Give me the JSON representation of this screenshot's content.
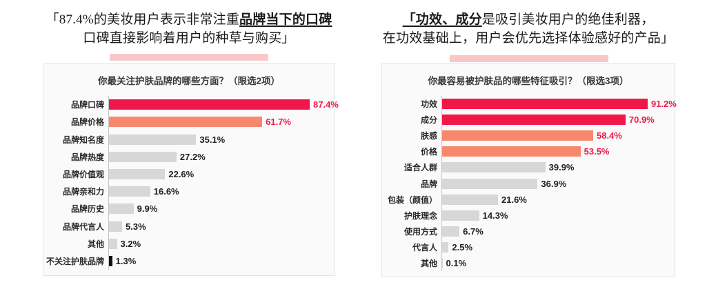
{
  "page": {
    "background": "#ffffff"
  },
  "palette": {
    "red": "#f0184a",
    "salmon": "#f8886d",
    "gray": "#d7d7d7",
    "black": "#111111",
    "value_red": "#ed1a4b",
    "value_dark": "#1f1f1f",
    "pink_strip": "#f9c7c7"
  },
  "panels": [
    {
      "headline": {
        "line1_prefix": "「87.4%的美妆用户表示非常注重",
        "line1_highlight": "品牌当下的口碑",
        "line1_suffix": "",
        "line2": "口碑直接影响着用户的种草与购买」"
      },
      "question": "你最关注护肤品牌的哪些方面？（限选2项）"
    },
    {
      "headline": {
        "line1_prefix": "",
        "line1_highlight": "「功效、成分",
        "line1_suffix": "是吸引美妆用户的绝佳利器，",
        "line2": "在功效基础上，用户会优先选择体验感好的产品」"
      },
      "question": "你最容易被护肤品的哪些特征吸引？（限选3项）"
    }
  ],
  "chart_data": [
    {
      "type": "bar",
      "orientation": "horizontal",
      "title": "你最关注护肤品牌的哪些方面？（限选2项）",
      "categories": [
        "品牌口碑",
        "品牌价格",
        "品牌知名度",
        "品牌热度",
        "品牌价值观",
        "品牌亲和力",
        "品牌历史",
        "品牌代言人",
        "其他",
        "不关注护肤品牌"
      ],
      "values": [
        87.4,
        61.7,
        35.1,
        27.2,
        22.6,
        16.6,
        9.9,
        5.3,
        3.2,
        1.3
      ],
      "value_suffix": "%",
      "xlim": [
        0,
        100
      ],
      "grid": false,
      "legend": false,
      "bar_color_keys": [
        "red",
        "salmon",
        "gray",
        "gray",
        "gray",
        "gray",
        "gray",
        "gray",
        "gray",
        "black"
      ],
      "value_color_keys": [
        "value_red",
        "value_red",
        "value_dark",
        "value_dark",
        "value_dark",
        "value_dark",
        "value_dark",
        "value_dark",
        "value_dark",
        "value_dark"
      ]
    },
    {
      "type": "bar",
      "orientation": "horizontal",
      "title": "你最容易被护肤品的哪些特征吸引？（限选3项）",
      "categories": [
        "功效",
        "成分",
        "肤感",
        "价格",
        "适合人群",
        "品牌",
        "包装（颜值）",
        "护肤理念",
        "使用方式",
        "代言人",
        "其他"
      ],
      "values": [
        91.2,
        70.9,
        58.4,
        53.5,
        39.9,
        36.9,
        21.6,
        14.3,
        6.7,
        2.5,
        0.1
      ],
      "value_suffix": "%",
      "xlim": [
        0,
        100
      ],
      "grid": false,
      "legend": false,
      "bar_color_keys": [
        "red",
        "red",
        "salmon",
        "salmon",
        "gray",
        "gray",
        "gray",
        "gray",
        "gray",
        "gray",
        "gray"
      ],
      "value_color_keys": [
        "value_red",
        "value_red",
        "value_red",
        "value_red",
        "value_dark",
        "value_dark",
        "value_dark",
        "value_dark",
        "value_dark",
        "value_dark",
        "value_dark"
      ]
    }
  ]
}
